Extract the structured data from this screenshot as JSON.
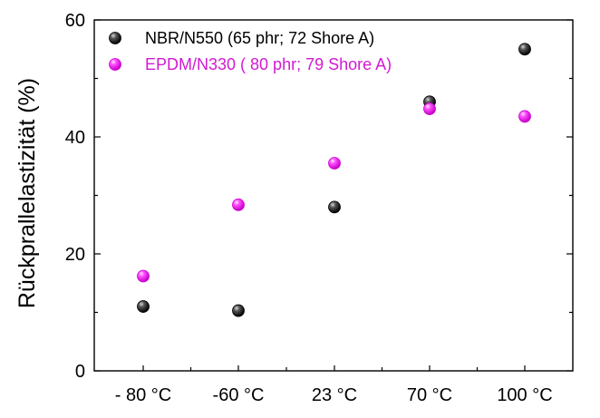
{
  "chart_data": {
    "type": "scatter",
    "title": "",
    "xlabel": "",
    "ylabel": "Rückprallelastizität (%)",
    "categories": [
      "- 80 °C",
      "-60 °C",
      "23 °C",
      "70 °C",
      "100 °C"
    ],
    "ylim": [
      0,
      60
    ],
    "yticks": [
      0,
      20,
      40,
      60
    ],
    "grid": false,
    "legend_position": "top-left",
    "series": [
      {
        "name": "NBR/N550 (65 phr; 72 Shore A)",
        "color": "#111111",
        "text_color": "#000000",
        "values": [
          11,
          10.3,
          28,
          46,
          55
        ]
      },
      {
        "name": "EPDM/N330 ( 80 phr; 79 Shore A)",
        "color": "#ff1eff",
        "text_color": "#d21ad2",
        "values": [
          16.2,
          28.4,
          35.5,
          44.8,
          43.5
        ]
      }
    ]
  }
}
